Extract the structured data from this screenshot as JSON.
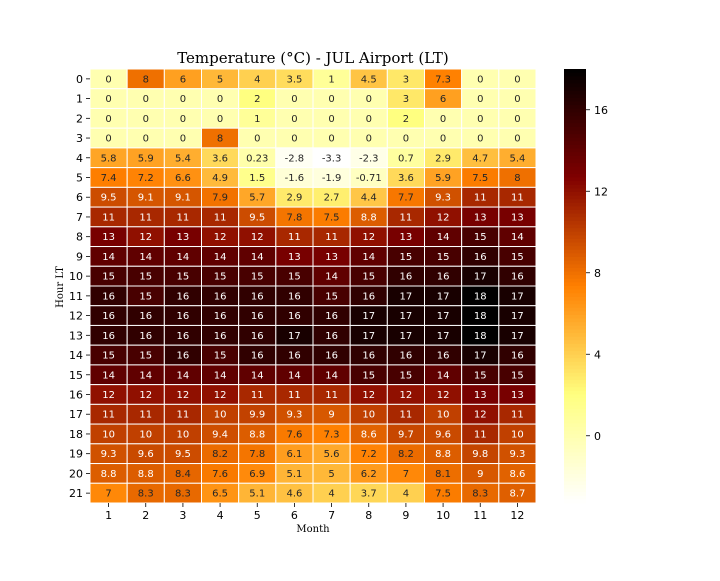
{
  "chart_data": {
    "type": "heatmap",
    "title": "Temperature (°C) - JUL Airport (LT)",
    "xlabel": "Month",
    "ylabel": "Hour LT",
    "x_categories": [
      "1",
      "2",
      "3",
      "4",
      "5",
      "6",
      "7",
      "8",
      "9",
      "10",
      "11",
      "12"
    ],
    "y_categories": [
      "0",
      "1",
      "2",
      "3",
      "4",
      "5",
      "6",
      "7",
      "8",
      "9",
      "10",
      "11",
      "12",
      "13",
      "14",
      "15",
      "16",
      "17",
      "18",
      "19",
      "20",
      "21"
    ],
    "values": [
      [
        0,
        8,
        6,
        5,
        4,
        3.5,
        1,
        4.5,
        3,
        7.3,
        0,
        0
      ],
      [
        0,
        0,
        0,
        0,
        2,
        0,
        0,
        0,
        3,
        6,
        0,
        0
      ],
      [
        0,
        0,
        0,
        0,
        1,
        0,
        0,
        0,
        2,
        0,
        0,
        0
      ],
      [
        0,
        0,
        0,
        8,
        0,
        0,
        0,
        0,
        0,
        0,
        0,
        0
      ],
      [
        5.8,
        5.9,
        5.4,
        3.6,
        0.23,
        -2.8,
        -3.3,
        -2.3,
        0.7,
        2.9,
        4.7,
        5.4
      ],
      [
        7.4,
        7.2,
        6.6,
        4.9,
        1.5,
        -1.6,
        -1.9,
        -0.71,
        3.6,
        5.9,
        7.5,
        8
      ],
      [
        9.5,
        9.1,
        9.1,
        7.9,
        5.7,
        2.9,
        2.7,
        4.4,
        7.7,
        9.3,
        11,
        11
      ],
      [
        11,
        11,
        11,
        11,
        9.5,
        7.8,
        7.5,
        8.8,
        11,
        12,
        13,
        13
      ],
      [
        13,
        12,
        13,
        12,
        12,
        11,
        11,
        12,
        13,
        14,
        15,
        14
      ],
      [
        14,
        14,
        14,
        14,
        14,
        13,
        13,
        14,
        15,
        15,
        16,
        15
      ],
      [
        15,
        15,
        15,
        15,
        15,
        15,
        14,
        15,
        16,
        16,
        17,
        16
      ],
      [
        16,
        15,
        16,
        16,
        16,
        16,
        15,
        16,
        17,
        17,
        18,
        17
      ],
      [
        16,
        16,
        16,
        16,
        16,
        16,
        16,
        17,
        17,
        17,
        18,
        17
      ],
      [
        16,
        16,
        16,
        16,
        16,
        17,
        16,
        17,
        17,
        17,
        18,
        17
      ],
      [
        15,
        15,
        16,
        15,
        16,
        16,
        16,
        16,
        16,
        16,
        17,
        16
      ],
      [
        14,
        14,
        14,
        14,
        14,
        14,
        14,
        15,
        15,
        14,
        15,
        15
      ],
      [
        12,
        12,
        12,
        12,
        11,
        11,
        11,
        12,
        12,
        12,
        13,
        13
      ],
      [
        11,
        11,
        11,
        10,
        9.9,
        9.3,
        9,
        10,
        11,
        10,
        12,
        11
      ],
      [
        10,
        10,
        10,
        9.4,
        8.8,
        7.6,
        7.3,
        8.6,
        9.7,
        9.6,
        11,
        10
      ],
      [
        9.3,
        9.6,
        9.5,
        8.2,
        7.8,
        6.1,
        5.6,
        7.2,
        8.2,
        8.8,
        9.8,
        9.3
      ],
      [
        8.8,
        8.8,
        8.4,
        7.6,
        6.9,
        5.1,
        5,
        6.2,
        7,
        8.1,
        9,
        8.6
      ],
      [
        7,
        8.3,
        8.3,
        6.5,
        5.1,
        4.6,
        4,
        3.7,
        4,
        7.5,
        8.3,
        8.7
      ]
    ],
    "colormap": "afmhot_r",
    "vmin": -3.3,
    "vmax": 18,
    "colorbar_ticks": [
      0,
      4,
      8,
      12,
      16
    ],
    "grid": true,
    "cell_border_color": "#ffffff",
    "legend": "right colorbar"
  }
}
